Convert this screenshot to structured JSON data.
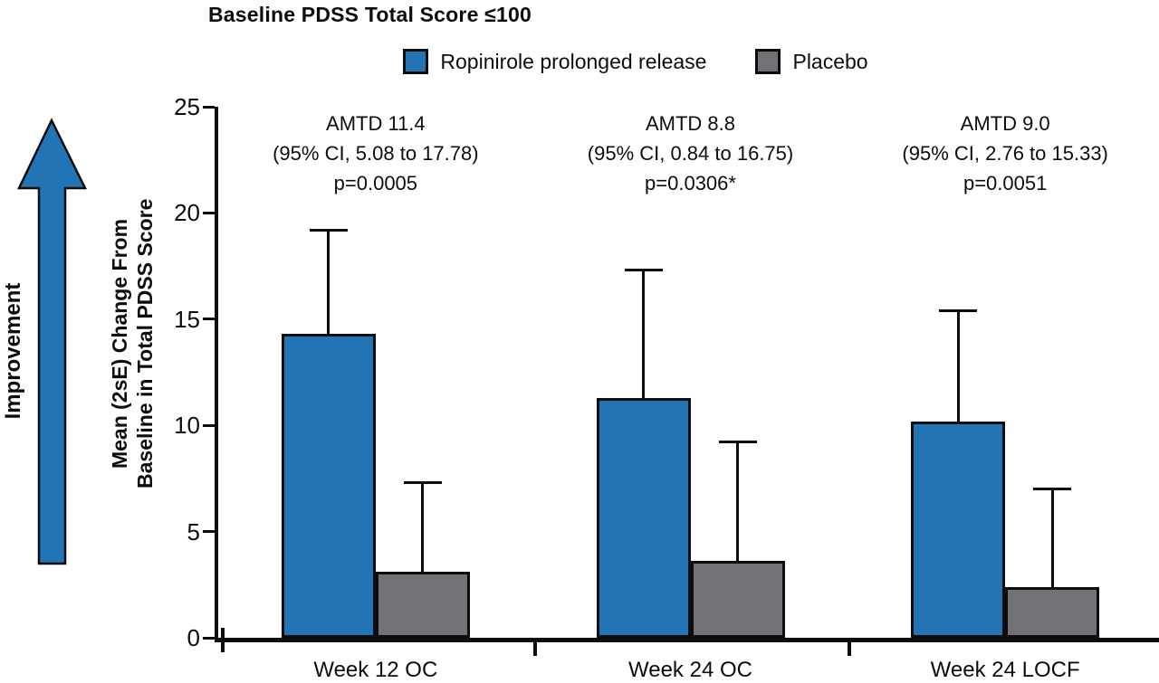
{
  "title": "Baseline PDSS Total Score ≤100",
  "improvement_label": "Improvement",
  "y_axis_label": {
    "line1": "Mean (2sE) Change From",
    "line2": "Baseline in Total PDSS Score"
  },
  "colors": {
    "ropinirole_blue": "#2274b5",
    "placebo_gray": "#717276",
    "outline": "#0d0d0d"
  },
  "legend": {
    "items": [
      {
        "label": "Ropinirole prolonged release",
        "color": "#2274b5"
      },
      {
        "label": "Placebo",
        "color": "#717276"
      }
    ]
  },
  "chart_data": {
    "type": "bar",
    "title": "Baseline PDSS Total Score ≤100",
    "categories": [
      "Week 12 OC",
      "Week 24 OC",
      "Week 24 LOCF"
    ],
    "series": [
      {
        "name": "Ropinirole prolonged release",
        "color": "#2274b5",
        "values": [
          14.3,
          11.3,
          10.2
        ],
        "error_bar_tops": [
          19.2,
          17.3,
          15.4
        ]
      },
      {
        "name": "Placebo",
        "color": "#717276",
        "values": [
          3.1,
          3.6,
          2.4
        ],
        "error_bar_tops": [
          7.3,
          9.2,
          7.0
        ]
      }
    ],
    "error_bar_style": "upper only (mean + 2sE)",
    "annotations": [
      {
        "group": "Week 12 OC",
        "lines": [
          "AMTD 11.4",
          "(95% CI, 5.08 to 17.78)",
          "p=0.0005"
        ]
      },
      {
        "group": "Week 24 OC",
        "lines": [
          "AMTD 8.8",
          "(95% CI, 0.84 to 16.75)",
          "p=0.0306*"
        ]
      },
      {
        "group": "Week 24 LOCF",
        "lines": [
          "AMTD 9.0",
          "(95% CI, 2.76 to 15.33)",
          "p=0.0051"
        ]
      }
    ],
    "xlabel": "",
    "ylabel": "Mean (2sE) Change From Baseline in Total PDSS Score",
    "ylim": [
      0,
      25
    ],
    "yticks": [
      0,
      5,
      10,
      15,
      20,
      25
    ],
    "grid": false,
    "legend_position": "top-center"
  }
}
